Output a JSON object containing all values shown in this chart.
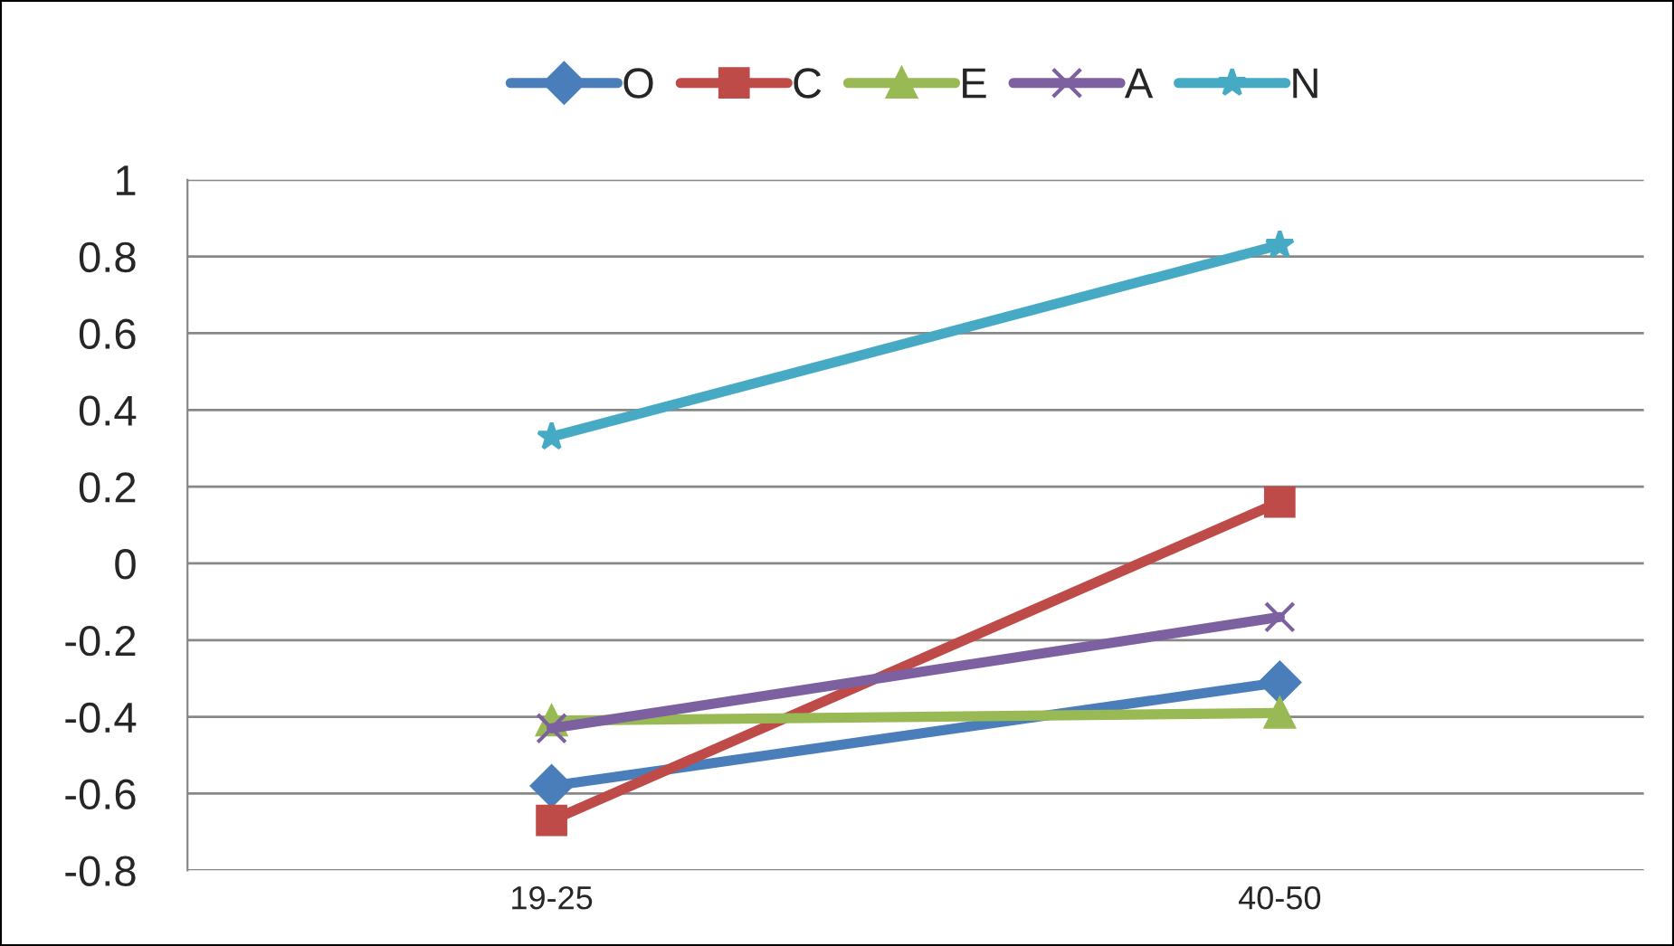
{
  "chart_data": {
    "type": "line",
    "categories": [
      "19-25",
      "40-50"
    ],
    "series": [
      {
        "name": "O",
        "color": "#4a7ebb",
        "marker": "diamond",
        "values": [
          -0.58,
          -0.31
        ]
      },
      {
        "name": "C",
        "color": "#be4b48",
        "marker": "square",
        "values": [
          -0.67,
          0.16
        ]
      },
      {
        "name": "E",
        "color": "#98b954",
        "marker": "triangle",
        "values": [
          -0.41,
          -0.39
        ]
      },
      {
        "name": "A",
        "color": "#7d60a0",
        "marker": "cross",
        "values": [
          -0.43,
          -0.14
        ]
      },
      {
        "name": "N",
        "color": "#46aac5",
        "marker": "star",
        "values": [
          0.33,
          0.83
        ]
      }
    ],
    "ylim": [
      -0.8,
      1
    ],
    "yticks": [
      -0.8,
      -0.6,
      -0.4,
      -0.2,
      0,
      0.2,
      0.4,
      0.6,
      0.8,
      1
    ],
    "grid": "y",
    "legend": "top",
    "line_style": "solid"
  }
}
